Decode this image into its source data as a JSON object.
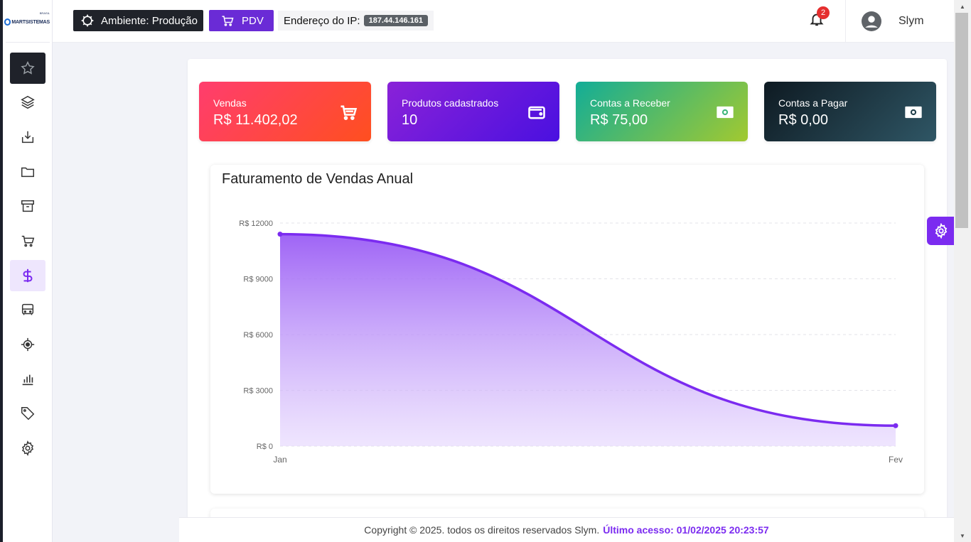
{
  "app": {
    "logo_text": "MARTSISTEMAS",
    "logo_sup": "BRASIL"
  },
  "topbar": {
    "environment_label": "Ambiente: Produção",
    "pdv_label": "PDV",
    "ip_label": "Endereço do IP:",
    "ip_value": "187.44.146.161",
    "notifications_count": "2",
    "user_name": "Slym"
  },
  "sidebar": {
    "items": [
      {
        "name": "favorites",
        "icon": "star-icon",
        "state": "active-dark"
      },
      {
        "name": "layers",
        "icon": "layers-icon",
        "state": ""
      },
      {
        "name": "import",
        "icon": "download-tray-icon",
        "state": ""
      },
      {
        "name": "files",
        "icon": "folder-icon",
        "state": ""
      },
      {
        "name": "archive",
        "icon": "archive-box-icon",
        "state": ""
      },
      {
        "name": "sales",
        "icon": "cart-icon",
        "state": ""
      },
      {
        "name": "finance",
        "icon": "dollar-icon",
        "state": "active-purple"
      },
      {
        "name": "transport",
        "icon": "bus-icon",
        "state": ""
      },
      {
        "name": "location",
        "icon": "target-icon",
        "state": ""
      },
      {
        "name": "reports",
        "icon": "bar-chart-icon",
        "state": ""
      },
      {
        "name": "tags",
        "icon": "tag-icon",
        "state": ""
      },
      {
        "name": "settings",
        "icon": "gear-icon",
        "state": ""
      }
    ]
  },
  "stats": [
    {
      "label": "Vendas",
      "value": "R$ 11.402,02",
      "icon": "cart-icon"
    },
    {
      "label": "Produtos cadastrados",
      "value": "10",
      "icon": "wallet-icon"
    },
    {
      "label": "Contas a Receber",
      "value": "R$ 75,00",
      "icon": "cash-icon"
    },
    {
      "label": "Contas a Pagar",
      "value": "R$ 0,00",
      "icon": "cash-icon"
    }
  ],
  "chart_title": "Faturamento de Vendas Anual",
  "chart_data": {
    "type": "area",
    "title": "Faturamento de Vendas Anual",
    "categories": [
      "Jan",
      "Fev"
    ],
    "series": [
      {
        "values": [
          11402.02,
          1100
        ]
      }
    ],
    "ylim": [
      0,
      12000
    ],
    "y_ticks": [
      "R$ 0",
      "R$ 3000",
      "R$ 6000",
      "R$ 9000",
      "R$ 12000"
    ],
    "y_tick_values": [
      0,
      3000,
      6000,
      9000,
      12000
    ],
    "grid": true,
    "color": "#7b2bf0"
  },
  "footer": {
    "copyright": "Copyright © 2025. todos os direitos reservados Slym.",
    "last_access": "Último acesso: 01/02/2025 20:23:57"
  },
  "colors": {
    "accent": "#7b2bf0",
    "pdv": "#6a2bd6",
    "dark": "#20232a"
  }
}
